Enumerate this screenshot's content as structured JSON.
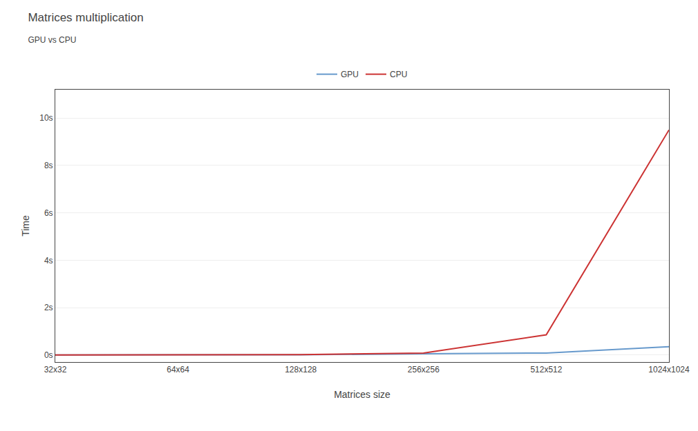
{
  "chart_data": {
    "type": "line",
    "title": "Matrices multiplication",
    "subtitle": "GPU vs CPU",
    "xlabel": "Matrices size",
    "ylabel": "Time",
    "categories": [
      "32x32",
      "64x64",
      "128x128",
      "256x256",
      "512x512",
      "1024x1024"
    ],
    "series": [
      {
        "name": "GPU",
        "color": "#6699cc",
        "values": [
          0.002,
          0.003,
          0.005,
          0.05,
          0.08,
          0.35
        ]
      },
      {
        "name": "CPU",
        "color": "#cc3333",
        "values": [
          0.001,
          0.003,
          0.015,
          0.08,
          0.85,
          9.5
        ]
      }
    ],
    "ylim": [
      -0.3,
      11.2
    ],
    "yticks": [
      {
        "value": 0,
        "label": "0s"
      },
      {
        "value": 2,
        "label": "2s"
      },
      {
        "value": 4,
        "label": "4s"
      },
      {
        "value": 6,
        "label": "6s"
      },
      {
        "value": 8,
        "label": "8s"
      },
      {
        "value": 10,
        "label": "10s"
      }
    ],
    "grid": true,
    "legend": "top"
  }
}
